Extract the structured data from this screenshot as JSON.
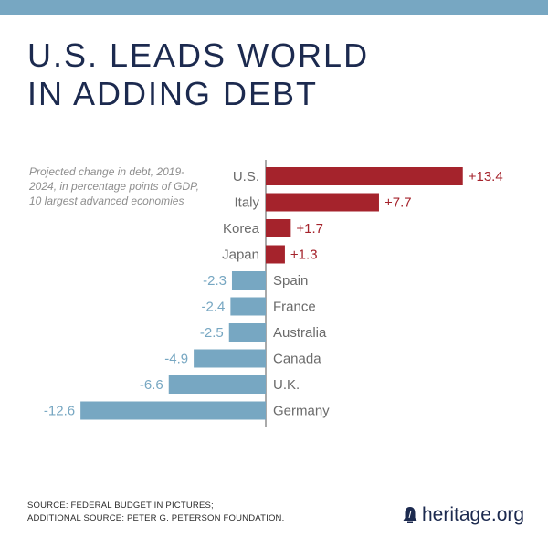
{
  "header": {
    "title_line1": "U.S. LEADS WORLD",
    "title_line2": "IN ADDING DEBT"
  },
  "colors": {
    "positive": "#a5232c",
    "negative": "#77a7c2",
    "title": "#1c2a4f",
    "label": "#6b6b6b"
  },
  "chart_data": {
    "type": "bar",
    "orientation": "horizontal",
    "subtitle": "Projected change in debt, 2019-2024, in percentage points of GDP, 10 largest advanced economies",
    "categories": [
      "U.S.",
      "Italy",
      "Korea",
      "Japan",
      "Spain",
      "France",
      "Australia",
      "Canada",
      "U.K.",
      "Germany"
    ],
    "values": [
      13.4,
      7.7,
      1.7,
      1.3,
      -2.3,
      -2.4,
      -2.5,
      -4.9,
      -6.6,
      -12.6
    ],
    "value_labels": [
      "+13.4",
      "+7.7",
      "+1.7",
      "+1.3",
      "-2.3",
      "-2.4",
      "-2.5",
      "-4.9",
      "-6.6",
      "-12.6"
    ],
    "xlim": [
      -12.6,
      13.4
    ],
    "grid": false
  },
  "footer": {
    "source_line1": "SOURCE: FEDERAL BUDGET IN PICTURES;",
    "source_line2": "ADDITIONAL SOURCE: PETER G. PETERSON FOUNDATION.",
    "logo_text": "heritage.org",
    "logo_icon": "liberty-bell-icon"
  }
}
